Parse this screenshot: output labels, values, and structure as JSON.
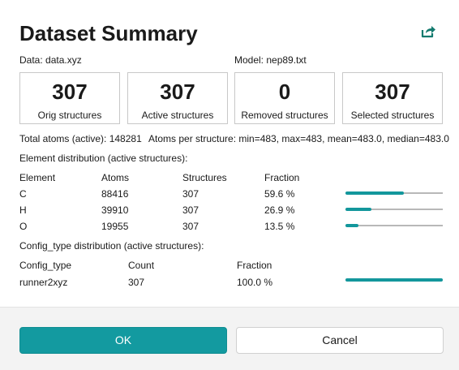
{
  "title": "Dataset Summary",
  "data_file": "Data: data.xyz",
  "model_file": "Model: nep89.txt",
  "cards": [
    {
      "value": 307,
      "label": "Orig structures"
    },
    {
      "value": 307,
      "label": "Active structures"
    },
    {
      "value": 0,
      "label": "Removed structures"
    },
    {
      "value": 307,
      "label": "Selected structures"
    }
  ],
  "total_atoms": "Total atoms (active): 148281",
  "atoms_per_structure": "Atoms per structure: min=483, max=483, mean=483.0, median=483.0",
  "element_section": "Element distribution (active structures):",
  "element_table": {
    "headers": [
      "Element",
      "Atoms",
      "Structures",
      "Fraction"
    ],
    "rows": [
      {
        "element": "C",
        "atoms": 88416,
        "structures": 307,
        "fraction": 59.6,
        "fraction_label": "59.6 %"
      },
      {
        "element": "H",
        "atoms": 39910,
        "structures": 307,
        "fraction": 26.9,
        "fraction_label": "26.9 %"
      },
      {
        "element": "O",
        "atoms": 19955,
        "structures": 307,
        "fraction": 13.5,
        "fraction_label": "13.5 %"
      }
    ]
  },
  "config_section": "Config_type distribution (active structures):",
  "config_table": {
    "headers": [
      "Config_type",
      "Count",
      "Fraction"
    ],
    "rows": [
      {
        "config_type": "runner2xyz",
        "count": 307,
        "fraction": 100.0,
        "fraction_label": "100.0 %"
      }
    ]
  },
  "buttons": {
    "ok": "OK",
    "cancel": "Cancel"
  }
}
